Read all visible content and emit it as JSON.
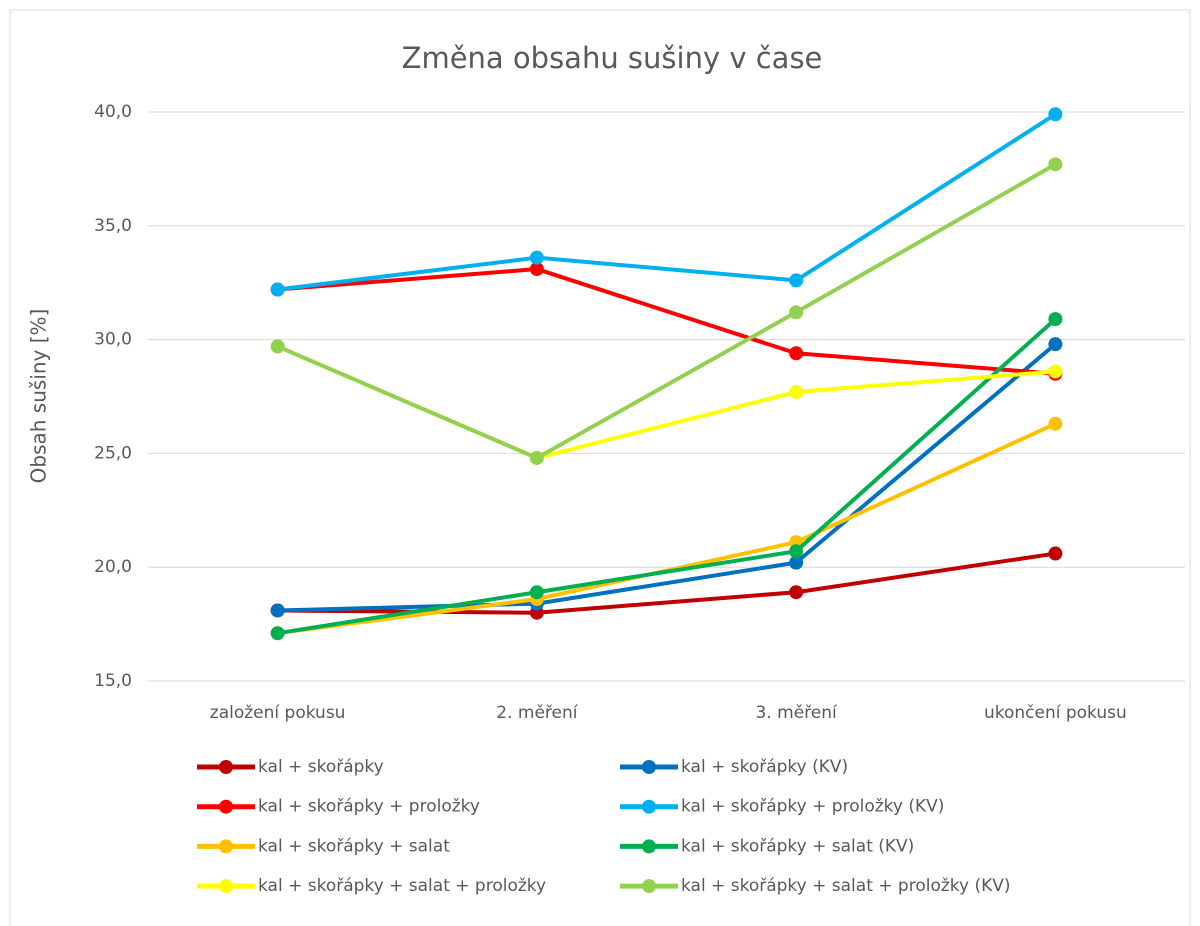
{
  "chart_data": {
    "type": "line",
    "title": "Změna obsahu sušiny v čase",
    "y_label": "Obsah sušiny [%]",
    "categories": [
      "založení pokusu",
      "2. měření",
      "3. měření",
      "ukončení pokusu"
    ],
    "series": [
      {
        "name": "kal + skořápky",
        "color": "#C00000",
        "values": [
          18.1,
          18.0,
          18.9,
          20.6
        ]
      },
      {
        "name": "kal + skořápky (KV)",
        "color": "#0070C0",
        "values": [
          18.1,
          18.4,
          20.2,
          29.8
        ]
      },
      {
        "name": "kal + skořápky + proložky",
        "color": "#FF0000",
        "values": [
          32.2,
          33.1,
          29.4,
          28.5
        ]
      },
      {
        "name": "kal + skořápky + proložky (KV)",
        "color": "#00B0F0",
        "values": [
          32.2,
          33.6,
          32.6,
          39.9
        ]
      },
      {
        "name": "kal + skořápky + salat",
        "color": "#FFC000",
        "values": [
          17.1,
          18.6,
          21.1,
          26.3
        ]
      },
      {
        "name": "kal + skořápky + salat (KV)",
        "color": "#00B050",
        "values": [
          17.1,
          18.9,
          20.7,
          30.9
        ]
      },
      {
        "name": "kal + skořápky + salat + proložky",
        "color": "#FFFF00",
        "values": [
          29.7,
          24.8,
          27.7,
          28.6
        ]
      },
      {
        "name": "kal + skořápky + salat + proložky (KV)",
        "color": "#92D050",
        "values": [
          29.7,
          24.8,
          31.2,
          37.7
        ]
      }
    ],
    "ylim": [
      15,
      40
    ],
    "yticks": [
      {
        "value": 15,
        "label": "15,0"
      },
      {
        "value": 20,
        "label": "20,0"
      },
      {
        "value": 25,
        "label": "25,0"
      },
      {
        "value": 30,
        "label": "30,0"
      },
      {
        "value": 35,
        "label": "35,0"
      },
      {
        "value": 40,
        "label": "40,0"
      }
    ],
    "grid": true,
    "legend": "bottom"
  }
}
